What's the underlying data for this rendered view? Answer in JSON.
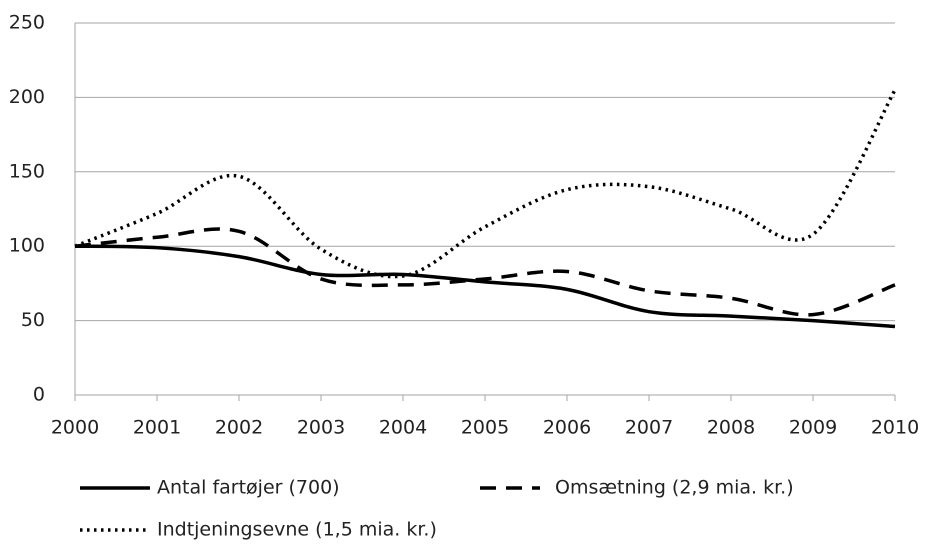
{
  "chart_data": {
    "type": "line",
    "categories": [
      "2000",
      "2001",
      "2002",
      "2003",
      "2004",
      "2005",
      "2006",
      "2007",
      "2008",
      "2009",
      "2010"
    ],
    "series": [
      {
        "name": "Antal fartøjer (700)",
        "color": "#000000",
        "dash": "solid",
        "values": [
          100,
          99,
          93,
          81,
          81,
          76,
          71,
          56,
          53,
          50,
          46
        ]
      },
      {
        "name": "Omsætning  (2,9 mia. kr.)",
        "color": "#000000",
        "dash": "dashed",
        "values": [
          100,
          106,
          110,
          78,
          74,
          78,
          83,
          70,
          65,
          54,
          74
        ]
      },
      {
        "name": "Indtjeningsevne (1,5 mia. kr.)",
        "color": "#000000",
        "dash": "dotted",
        "values": [
          100,
          122,
          147,
          98,
          80,
          113,
          138,
          140,
          125,
          108,
          205
        ]
      }
    ],
    "ylim": [
      0,
      250
    ],
    "yticks": [
      0,
      50,
      100,
      150,
      200,
      250
    ],
    "grid": true,
    "smooth": true,
    "legend": "bottom"
  }
}
